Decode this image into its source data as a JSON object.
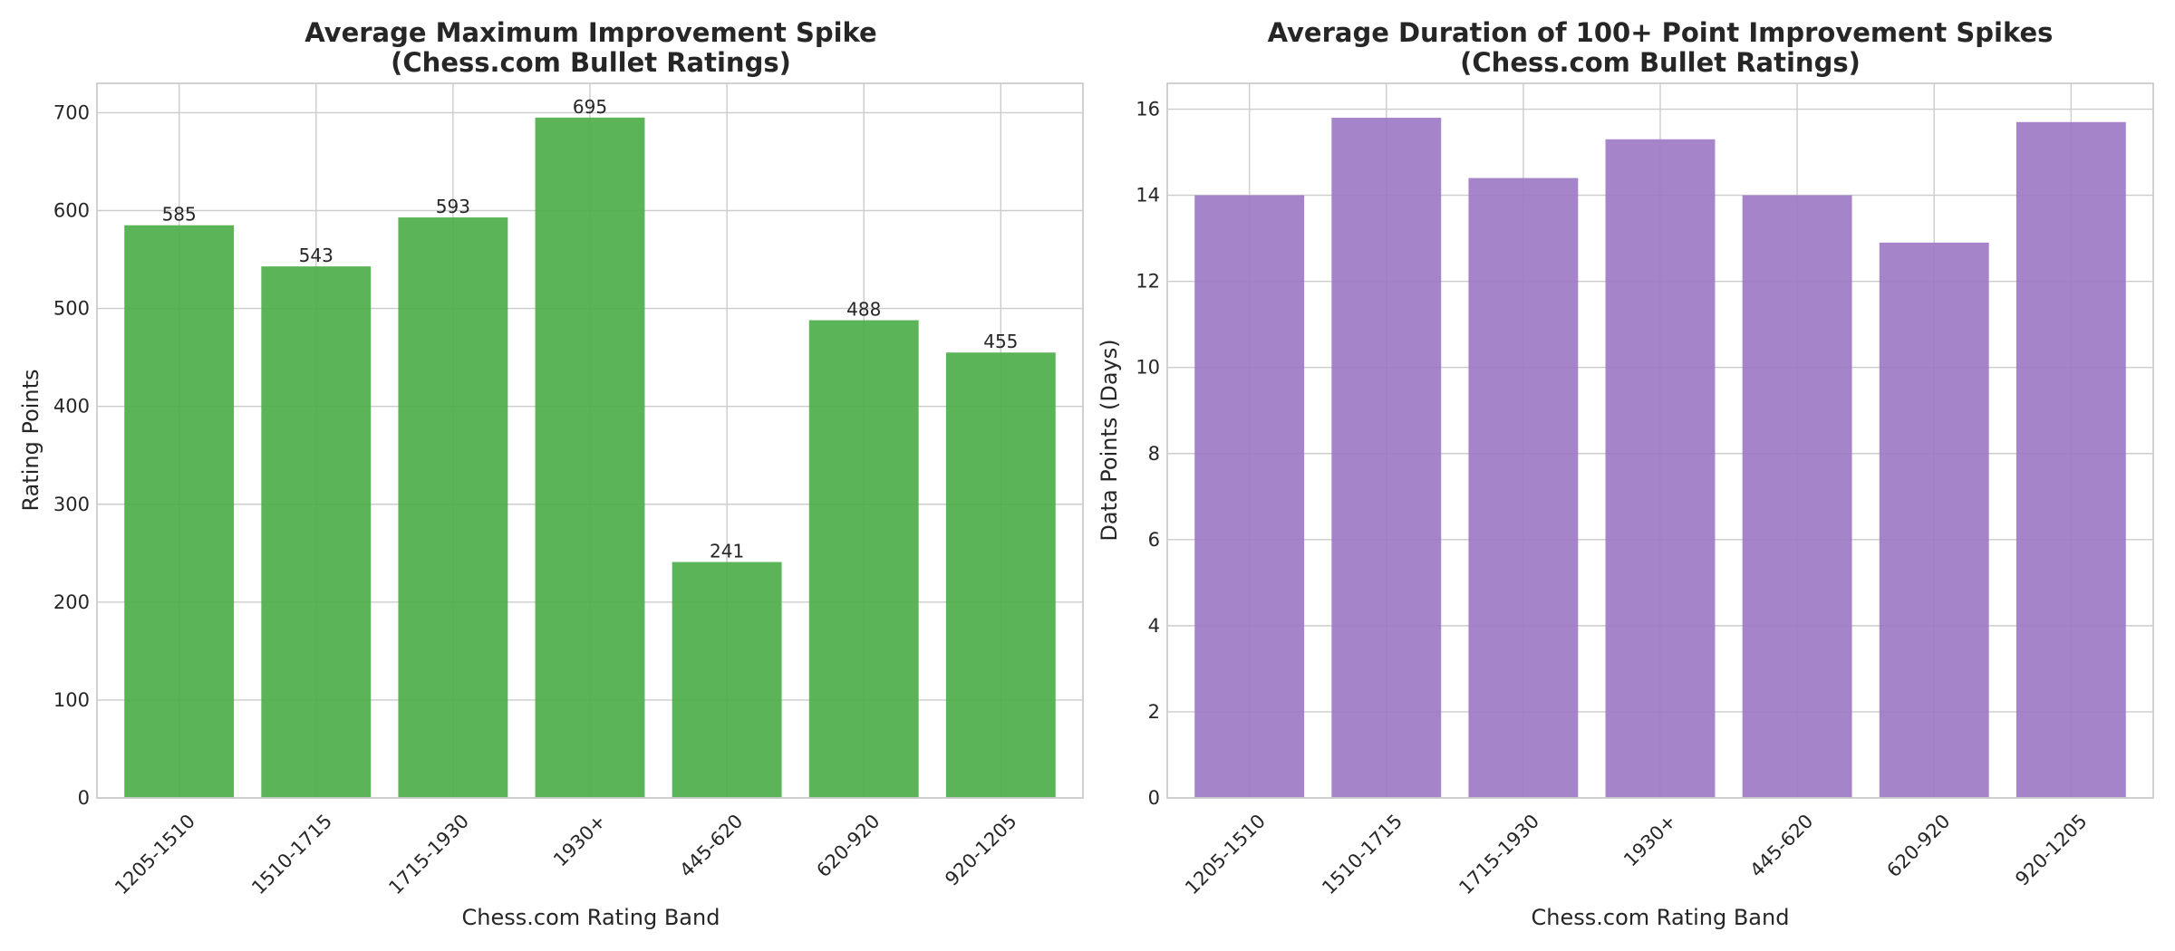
{
  "chart_data": [
    {
      "type": "bar",
      "title": "Average Maximum Improvement Spike",
      "subtitle": "(Chess.com Bullet Ratings)",
      "xlabel": "Chess.com Rating Band",
      "ylabel": "Rating Points",
      "categories": [
        "1205-1510",
        "1510-1715",
        "1715-1930",
        "1930+",
        "445-620",
        "620-920",
        "920-1205"
      ],
      "values": [
        585,
        543,
        593,
        695,
        241,
        488,
        455
      ],
      "data_labels": [
        "585",
        "543",
        "593",
        "695",
        "241",
        "488",
        "455"
      ],
      "ylim": [
        0,
        730
      ],
      "yticks": [
        0,
        100,
        200,
        300,
        400,
        500,
        600,
        700
      ],
      "grid": true,
      "legend": "none",
      "color": "#4daf4a"
    },
    {
      "type": "bar",
      "title": "Average Duration of 100+ Point Improvement Spikes",
      "subtitle": "(Chess.com Bullet Ratings)",
      "xlabel": "Chess.com Rating Band",
      "ylabel": "Data Points (Days)",
      "categories": [
        "1205-1510",
        "1510-1715",
        "1715-1930",
        "1930+",
        "445-620",
        "620-920",
        "920-1205"
      ],
      "values": [
        14.0,
        15.8,
        14.4,
        15.3,
        14.0,
        12.9,
        15.7
      ],
      "ylim": [
        0,
        16.6
      ],
      "yticks": [
        0,
        2,
        4,
        6,
        8,
        10,
        12,
        14,
        16
      ],
      "grid": true,
      "legend": "none",
      "color": "#9e79c5"
    }
  ]
}
